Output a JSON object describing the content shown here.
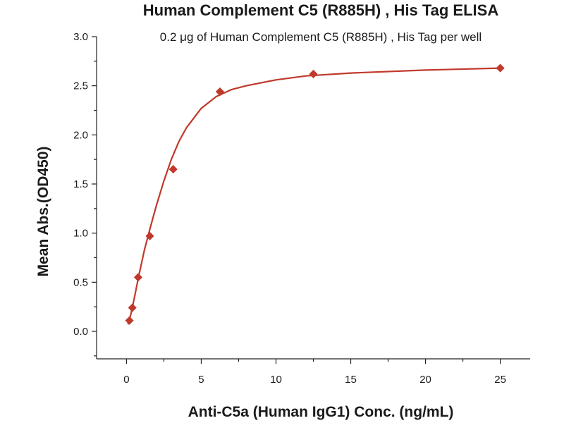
{
  "colors": {
    "series": "#c0392b",
    "axis": "#222222",
    "text": "#1a1a1a"
  },
  "chart_data": {
    "type": "scatter",
    "title": "Human Complement C5 (R885H) , His Tag ELISA",
    "subtitle": "0.2 μg of Human Complement C5 (R885H) , His Tag per well",
    "xlabel": "Anti-C5a (Human IgG1) Conc. (ng/mL)",
    "ylabel": "Mean Abs.(OD450)",
    "xlim": [
      -2,
      27
    ],
    "ylim": [
      -0.28,
      3.0
    ],
    "x_ticks": [
      0,
      5,
      10,
      15,
      20,
      25
    ],
    "x_tick_labels": [
      "0",
      "5",
      "10",
      "15",
      "20",
      "25"
    ],
    "y_ticks": [
      0.0,
      0.5,
      1.0,
      1.5,
      2.0,
      2.5,
      3.0
    ],
    "y_tick_labels": [
      "0.0",
      "0.5",
      "1.0",
      "1.5",
      "2.0",
      "2.5",
      "3.0"
    ],
    "grid": false,
    "marker": "diamond",
    "series": [
      {
        "x": [
          0.195,
          0.39,
          0.78,
          1.56,
          3.125,
          6.25,
          12.5,
          25
        ],
        "y": [
          0.11,
          0.24,
          0.55,
          0.97,
          1.65,
          2.44,
          2.62,
          2.68
        ]
      }
    ],
    "fit_curve": {
      "x": [
        0.1,
        0.3,
        0.5,
        0.8,
        1.2,
        1.6,
        2.0,
        2.5,
        3.0,
        3.5,
        4.0,
        5.0,
        6.0,
        7.0,
        8.0,
        10.0,
        12.0,
        15.0,
        20.0,
        25.0
      ],
      "y": [
        0.07,
        0.18,
        0.32,
        0.55,
        0.83,
        1.06,
        1.28,
        1.53,
        1.75,
        1.93,
        2.07,
        2.27,
        2.39,
        2.46,
        2.5,
        2.56,
        2.6,
        2.63,
        2.66,
        2.68
      ]
    }
  }
}
